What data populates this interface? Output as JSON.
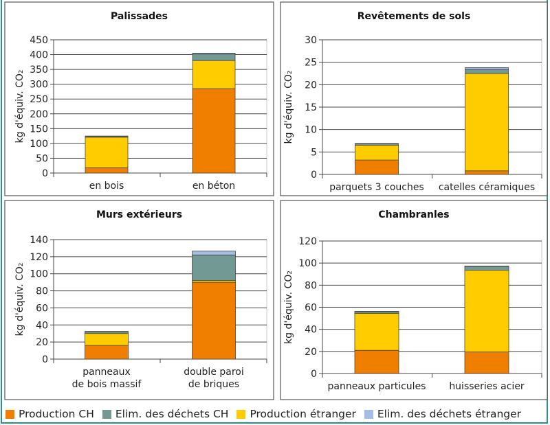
{
  "colors": {
    "production_ch": "#f07f00",
    "elim_ch": "#739995",
    "production_etranger": "#ffcc00",
    "elim_etranger": "#a3bde6"
  },
  "legend": [
    {
      "name": "Production CH",
      "color": "#f07f00"
    },
    {
      "name": "Elim. des déchets CH",
      "color": "#739995"
    },
    {
      "name": "Production étranger",
      "color": "#ffcc00"
    },
    {
      "name": "Elim. des déchets étranger",
      "color": "#a3bde6"
    }
  ],
  "chart_data": [
    {
      "type": "bar",
      "stacked": true,
      "title": "Palissades",
      "ylabel": "kg d'équiv. CO₂",
      "ylim": [
        0,
        450
      ],
      "yticks": [
        0,
        50,
        100,
        150,
        200,
        250,
        300,
        350,
        400,
        450
      ],
      "categories": [
        [
          "en bois"
        ],
        [
          "en béton"
        ]
      ],
      "series": [
        {
          "name": "Production CH",
          "values": [
            18,
            285
          ]
        },
        {
          "name": "Production étranger",
          "values": [
            103,
            95
          ]
        },
        {
          "name": "Elim. des déchets CH",
          "values": [
            3,
            22
          ]
        },
        {
          "name": "Elim. des déchets étranger",
          "values": [
            1,
            3
          ]
        }
      ],
      "grid": true
    },
    {
      "type": "bar",
      "stacked": true,
      "title": "Revêtements de sols",
      "ylabel": "kg d'équiv. CO₂",
      "ylim": [
        0,
        30
      ],
      "yticks": [
        0,
        5,
        10,
        15,
        20,
        25,
        30
      ],
      "categories": [
        [
          "parquets 3 couches"
        ],
        [
          "catelles céramiques"
        ]
      ],
      "series": [
        {
          "name": "Production CH",
          "values": [
            3.2,
            0.8
          ]
        },
        {
          "name": "Production étranger",
          "values": [
            3.3,
            21.7
          ]
        },
        {
          "name": "Elim. des déchets CH",
          "values": [
            0.3,
            0.9
          ]
        },
        {
          "name": "Elim. des déchets étranger",
          "values": [
            0.1,
            0.4
          ]
        }
      ],
      "grid": true
    },
    {
      "type": "bar",
      "stacked": true,
      "title": "Murs extérieurs",
      "ylabel": "kg d'équiv. CO₂",
      "ylim": [
        0,
        140
      ],
      "yticks": [
        0,
        20,
        40,
        60,
        80,
        100,
        120,
        140
      ],
      "categories": [
        [
          "panneaux",
          "de bois massif"
        ],
        [
          "double paroi",
          "de briques"
        ]
      ],
      "series": [
        {
          "name": "Production CH",
          "values": [
            16,
            90
          ]
        },
        {
          "name": "Production étranger",
          "values": [
            14,
            2
          ]
        },
        {
          "name": "Elim. des déchets CH",
          "values": [
            2,
            30
          ]
        },
        {
          "name": "Elim. des déchets étranger",
          "values": [
            0.5,
            4.5
          ]
        }
      ],
      "grid": true
    },
    {
      "type": "bar",
      "stacked": true,
      "title": "Chambranles",
      "ylabel": "kg d'équiv. CO₂",
      "ylim": [
        0,
        120
      ],
      "yticks": [
        0,
        20,
        40,
        60,
        80,
        100,
        120
      ],
      "categories": [
        [
          "panneaux particules"
        ],
        [
          "huisseries acier"
        ]
      ],
      "series": [
        {
          "name": "Production CH",
          "values": [
            21,
            19.5
          ]
        },
        {
          "name": "Production étranger",
          "values": [
            33.5,
            74
          ]
        },
        {
          "name": "Elim. des déchets CH",
          "values": [
            1.5,
            3.5
          ]
        },
        {
          "name": "Elim. des déchets étranger",
          "values": [
            0.3,
            0.3
          ]
        }
      ],
      "grid": true
    }
  ]
}
